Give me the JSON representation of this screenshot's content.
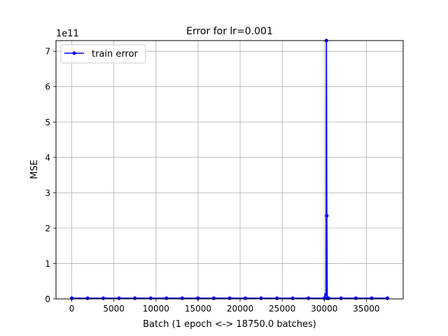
{
  "chart_data": {
    "type": "line",
    "title": "Error for lr=0.001",
    "xlabel": "Batch (1 epoch <-> 18750.0 batches)",
    "ylabel": "MSE",
    "y_offset_label": "1e11",
    "y_scale_exponent": 11,
    "xlim": [
      -1875,
      39375
    ],
    "ylim": [
      0,
      7.3
    ],
    "x_ticks": [
      0,
      5000,
      10000,
      15000,
      20000,
      25000,
      30000,
      35000
    ],
    "x_tick_labels": [
      "0",
      "5000",
      "10000",
      "15000",
      "20000",
      "25000",
      "30000",
      "35000"
    ],
    "y_ticks": [
      0,
      1,
      2,
      3,
      4,
      5,
      6,
      7
    ],
    "y_tick_labels": [
      "0",
      "1",
      "2",
      "3",
      "4",
      "5",
      "6",
      "7"
    ],
    "grid": true,
    "legend_position": "top-left",
    "series": [
      {
        "name": "train error",
        "color": "#0000ff",
        "marker": "circle",
        "x": [
          0,
          1875,
          3750,
          5625,
          7500,
          9375,
          11250,
          13125,
          15000,
          16875,
          18750,
          20625,
          22500,
          24375,
          26250,
          28125,
          30000,
          30200,
          30250,
          30300,
          30350,
          30400,
          30450,
          30500,
          32000,
          33750,
          35625,
          37500
        ],
        "y": [
          0.02,
          0.02,
          0.02,
          0.02,
          0.02,
          0.02,
          0.02,
          0.02,
          0.02,
          0.02,
          0.02,
          0.02,
          0.02,
          0.02,
          0.02,
          0.02,
          0.02,
          0.12,
          7.3,
          2.35,
          0.02,
          0.02,
          0.02,
          0.02,
          0.02,
          0.02,
          0.02,
          0.02
        ]
      }
    ]
  }
}
